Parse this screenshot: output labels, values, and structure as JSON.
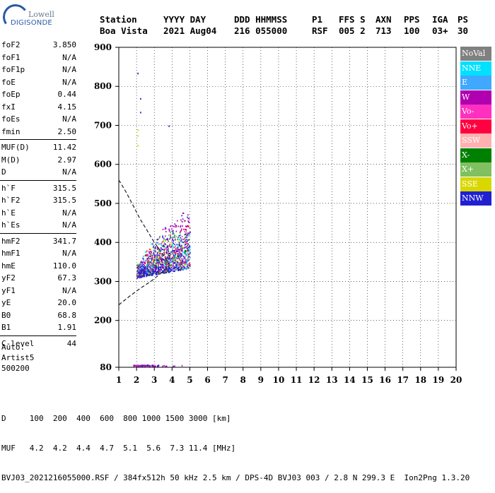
{
  "logo": {
    "line1": "Lowell",
    "line2": "DIGISONDE"
  },
  "header": {
    "labels": [
      "Station",
      "YYYY DAY",
      "DDD HHMMSS",
      "P1",
      "FFS S",
      "AXN",
      "PPS",
      "IGA",
      "PS"
    ],
    "values": [
      "Boa Vista",
      "2021 Aug04",
      "216 055000",
      "RSF",
      "005 2",
      "713",
      "100",
      "03+",
      "30"
    ]
  },
  "parameters": [
    {
      "group": [
        {
          "name": "foF2",
          "value": "3.850"
        },
        {
          "name": "foF1",
          "value": "N/A"
        },
        {
          "name": "foF1p",
          "value": "N/A"
        },
        {
          "name": "foE",
          "value": "N/A"
        },
        {
          "name": "foEp",
          "value": "0.44"
        },
        {
          "name": "fxI",
          "value": "4.15"
        },
        {
          "name": "foEs",
          "value": "N/A"
        },
        {
          "name": "fmin",
          "value": "2.50"
        }
      ]
    },
    {
      "group": [
        {
          "name": "MUF(D)",
          "value": "11.42"
        },
        {
          "name": "M(D)",
          "value": "2.97"
        },
        {
          "name": "D",
          "value": "N/A"
        }
      ]
    },
    {
      "group": [
        {
          "name": "h`F",
          "value": "315.5"
        },
        {
          "name": "h`F2",
          "value": "315.5"
        },
        {
          "name": "h`E",
          "value": "N/A"
        },
        {
          "name": "h`Es",
          "value": "N/A"
        }
      ]
    },
    {
      "group": [
        {
          "name": "hmF2",
          "value": "341.7"
        },
        {
          "name": "hmF1",
          "value": "N/A"
        },
        {
          "name": "hmE",
          "value": "110.0"
        },
        {
          "name": "yF2",
          "value": "67.3"
        },
        {
          "name": "yF1",
          "value": "N/A"
        },
        {
          "name": "yE",
          "value": "20.0"
        },
        {
          "name": "B0",
          "value": "68.8"
        },
        {
          "name": "B1",
          "value": "1.91"
        }
      ]
    },
    {
      "group": [
        {
          "name": "C-level",
          "value": "44"
        }
      ]
    }
  ],
  "auto": {
    "line1": "Auto:",
    "line2": "Artist5",
    "line3": "500200"
  },
  "footer": {
    "d_row": "D     100  200  400  600  800 1000 1500 3000 [km]",
    "muf_row": "MUF   4.2  4.2  4.4  4.7  5.1  5.6  7.3 11.4 [MHz]",
    "file_row": "BVJ03_2021216055000.RSF / 384fx512h 50 kHz 2.5 km / DPS-4D BVJ03 003 / 2.8 N 299.3 E  Ion2Png 1.3.20"
  },
  "legend": [
    {
      "label": "NoVal",
      "color": "#808080"
    },
    {
      "label": "NNE",
      "color": "#00e0ff"
    },
    {
      "label": "E",
      "color": "#40a8ff"
    },
    {
      "label": "W",
      "color": "#b000b0"
    },
    {
      "label": "Vo-",
      "color": "#ff30c0"
    },
    {
      "label": "Vo+",
      "color": "#ff0040"
    },
    {
      "label": "SSW",
      "color": "#ffb0b0"
    },
    {
      "label": "X-",
      "color": "#008000"
    },
    {
      "label": "X+",
      "color": "#80c060"
    },
    {
      "label": "SSE",
      "color": "#d8d800"
    },
    {
      "label": "NNW",
      "color": "#2020d0"
    }
  ],
  "chart_data": {
    "type": "scatter",
    "xlim": [
      1,
      20
    ],
    "ylim": [
      80,
      900
    ],
    "x_ticks": [
      "1",
      "2",
      "3",
      "4",
      "5",
      "6",
      "7",
      "8",
      "9",
      "10",
      "11",
      "12",
      "13",
      "14",
      "15",
      "16",
      "17",
      "18",
      "19",
      "20"
    ],
    "y_ticks": [
      "80",
      "200",
      "300",
      "400",
      "500",
      "600",
      "700",
      "800",
      "900"
    ],
    "grid": true,
    "legend_position": "right",
    "echo_region": {
      "x_min": 2.0,
      "x_max": 5.0,
      "y_min": 295,
      "y_max": 545
    },
    "sparse_points": [
      {
        "x": 2.05,
        "y": 835,
        "color": "#2020d0"
      },
      {
        "x": 2.2,
        "y": 770,
        "color": "#2020d0"
      },
      {
        "x": 2.2,
        "y": 735,
        "color": "#2020d0"
      },
      {
        "x": 2.05,
        "y": 690,
        "color": "#d8d800"
      },
      {
        "x": 2.05,
        "y": 675,
        "color": "#d8d800"
      },
      {
        "x": 2.05,
        "y": 650,
        "color": "#d8d800"
      },
      {
        "x": 3.8,
        "y": 700,
        "color": "#2020d0"
      }
    ],
    "profile_curve": [
      {
        "x": 1.0,
        "y": 560
      },
      {
        "x": 1.4,
        "y": 530
      },
      {
        "x": 1.8,
        "y": 495
      },
      {
        "x": 2.2,
        "y": 460
      },
      {
        "x": 2.6,
        "y": 430
      },
      {
        "x": 3.0,
        "y": 400
      },
      {
        "x": 3.4,
        "y": 375
      },
      {
        "x": 3.85,
        "y": 342
      }
    ],
    "profile_curve_lower": [
      {
        "x": 1.0,
        "y": 240
      },
      {
        "x": 1.6,
        "y": 262
      },
      {
        "x": 2.2,
        "y": 282
      },
      {
        "x": 2.8,
        "y": 300
      },
      {
        "x": 3.3,
        "y": 318
      },
      {
        "x": 3.85,
        "y": 342
      }
    ],
    "bottom_markers": {
      "x_min": 1.8,
      "x_max": 5.0,
      "y": 84
    }
  }
}
